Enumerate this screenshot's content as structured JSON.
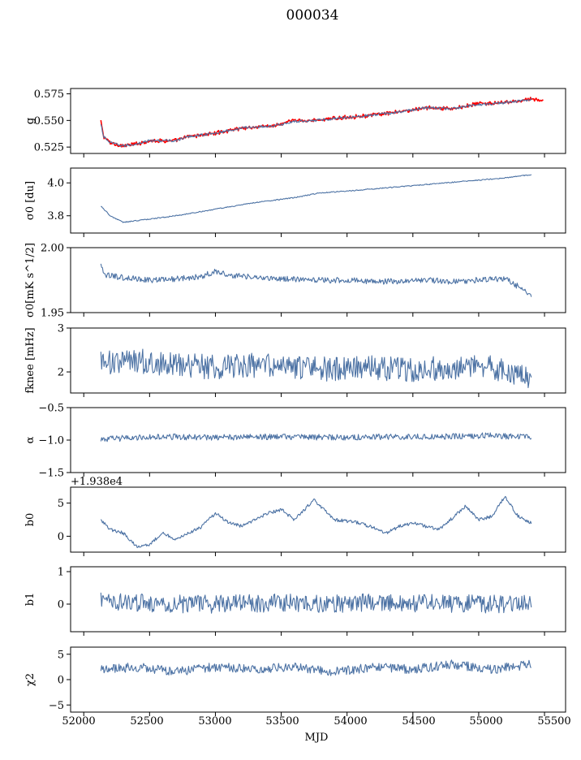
{
  "title": "000034",
  "xlabel": "MJD",
  "x_ticks": [
    "52000",
    "52500",
    "53000",
    "53500",
    "54000",
    "54500",
    "55000",
    "55500"
  ],
  "colors": {
    "line": "#4c72a4",
    "overlay": "#ff0000"
  },
  "chart_data": [
    {
      "type": "line",
      "ylabel": "g",
      "xlim": [
        51900,
        55660
      ],
      "ylim": [
        0.519,
        0.58
      ],
      "y_ticks": [
        "0.525",
        "0.550",
        "0.575"
      ],
      "series": [
        {
          "color": "#ff0000",
          "x": [
            52130,
            52150,
            52200,
            52300,
            52400,
            52500,
            52700,
            52800,
            53000,
            53200,
            53450,
            53600,
            53750,
            54000,
            54200,
            54400,
            54600,
            54800,
            55000,
            55150,
            55300,
            55400,
            55490
          ],
          "y": [
            0.549,
            0.535,
            0.529,
            0.526,
            0.528,
            0.531,
            0.531,
            0.535,
            0.538,
            0.543,
            0.545,
            0.55,
            0.55,
            0.553,
            0.555,
            0.558,
            0.562,
            0.561,
            0.566,
            0.566,
            0.568,
            0.57,
            0.569
          ]
        },
        {
          "color": "#4c72a4",
          "x": [
            52130,
            52150,
            52200,
            52300,
            52400,
            52500,
            52700,
            52800,
            53000,
            53200,
            53450,
            53600,
            53750,
            54000,
            54200,
            54400,
            54600,
            54800,
            55000,
            55150,
            55300,
            55400
          ],
          "y": [
            0.546,
            0.535,
            0.529,
            0.526,
            0.528,
            0.531,
            0.531,
            0.535,
            0.538,
            0.543,
            0.545,
            0.549,
            0.55,
            0.553,
            0.555,
            0.558,
            0.562,
            0.561,
            0.565,
            0.566,
            0.568,
            0.57
          ]
        }
      ]
    },
    {
      "type": "line",
      "ylabel": "σ0 [du]",
      "xlim": [
        51900,
        55660
      ],
      "ylim": [
        3.695,
        4.09
      ],
      "y_ticks": [
        "3.8",
        "4.0"
      ],
      "series": [
        {
          "color": "#4c72a4",
          "x": [
            52130,
            52200,
            52300,
            52400,
            52500,
            52700,
            53000,
            53300,
            53600,
            53800,
            54000,
            54300,
            54600,
            54900,
            55200,
            55400
          ],
          "y": [
            3.86,
            3.8,
            3.76,
            3.77,
            3.78,
            3.8,
            3.84,
            3.88,
            3.91,
            3.94,
            3.95,
            3.97,
            3.99,
            4.01,
            4.03,
            4.05
          ]
        }
      ]
    },
    {
      "type": "line",
      "ylabel": "σ0[mK s^1/2]",
      "xlim": [
        51900,
        55660
      ],
      "ylim": [
        1.95,
        2.0
      ],
      "y_ticks": [
        "1.95",
        "2.00"
      ],
      "series": [
        {
          "color": "#4c72a4",
          "x": [
            52130,
            52150,
            52300,
            52500,
            52700,
            52900,
            53000,
            53100,
            53300,
            53500,
            53800,
            54000,
            54200,
            54400,
            54600,
            54800,
            55000,
            55200,
            55300,
            55400
          ],
          "y": [
            1.988,
            1.979,
            1.977,
            1.975,
            1.976,
            1.978,
            1.982,
            1.979,
            1.977,
            1.976,
            1.975,
            1.975,
            1.974,
            1.974,
            1.975,
            1.974,
            1.975,
            1.976,
            1.97,
            1.962
          ]
        }
      ]
    },
    {
      "type": "line",
      "ylabel": "fknee [mHz]",
      "xlim": [
        51900,
        55660
      ],
      "ylim": [
        1.52,
        3.0
      ],
      "y_ticks": [
        "2",
        "3"
      ],
      "series": [
        {
          "color": "#4c72a4",
          "x": [
            52130,
            52200,
            52400,
            52600,
            52800,
            53000,
            53300,
            53600,
            53900,
            54200,
            54500,
            54800,
            55000,
            55200,
            55400
          ],
          "y": [
            2.3,
            2.2,
            2.25,
            2.2,
            2.15,
            2.1,
            2.15,
            2.1,
            2.05,
            2.1,
            2.05,
            2.1,
            2.15,
            2.05,
            1.9
          ]
        }
      ]
    },
    {
      "type": "line",
      "ylabel": "α",
      "xlim": [
        51900,
        55660
      ],
      "ylim": [
        -1.5,
        -0.5
      ],
      "y_ticks": [
        "−1.5",
        "−1.0",
        "−0.5"
      ],
      "series": [
        {
          "color": "#4c72a4",
          "x": [
            52130,
            52400,
            52700,
            53000,
            53300,
            53600,
            53900,
            54200,
            54500,
            54800,
            55100,
            55400
          ],
          "y": [
            -0.99,
            -0.96,
            -0.95,
            -0.96,
            -0.95,
            -0.95,
            -0.96,
            -0.95,
            -0.95,
            -0.94,
            -0.93,
            -0.96
          ]
        }
      ]
    },
    {
      "type": "line",
      "ylabel": "b0",
      "offset_text": "+1.938e4",
      "xlim": [
        51900,
        55660
      ],
      "ylim": [
        -2.4,
        7.4
      ],
      "y_ticks": [
        "0",
        "5"
      ],
      "series": [
        {
          "color": "#4c72a4",
          "x": [
            52130,
            52200,
            52300,
            52400,
            52500,
            52600,
            52700,
            52800,
            52900,
            53000,
            53100,
            53200,
            53400,
            53500,
            53600,
            53750,
            53900,
            54100,
            54300,
            54400,
            54500,
            54700,
            54900,
            55000,
            55100,
            55200,
            55300,
            55400
          ],
          "y": [
            2.5,
            1.0,
            0.5,
            -1.5,
            -1.2,
            0.5,
            -0.5,
            0.5,
            1.5,
            3.5,
            2.0,
            1.5,
            3.5,
            4.0,
            2.5,
            5.5,
            2.5,
            2.0,
            0.5,
            1.5,
            2.0,
            1.0,
            4.5,
            2.5,
            3.0,
            6.0,
            3.0,
            2.0
          ]
        }
      ]
    },
    {
      "type": "line",
      "ylabel": "b1",
      "xlim": [
        51900,
        55660
      ],
      "ylim": [
        -0.85,
        1.15
      ],
      "y_ticks": [
        "0",
        "1"
      ],
      "series": [
        {
          "color": "#4c72a4",
          "x": [
            52130,
            52400,
            52700,
            53000,
            53300,
            53600,
            53900,
            54200,
            54500,
            54800,
            55100,
            55400
          ],
          "y": [
            0.1,
            0.05,
            0.0,
            0.0,
            0.02,
            0.05,
            0.0,
            0.05,
            0.03,
            0.02,
            0.0,
            0.05
          ]
        }
      ]
    },
    {
      "type": "line",
      "ylabel": "χ2",
      "xlim": [
        51900,
        55660
      ],
      "ylim": [
        -6.4,
        6.4
      ],
      "y_ticks": [
        "−5",
        "0",
        "5"
      ],
      "series": [
        {
          "color": "#4c72a4",
          "x": [
            52130,
            52400,
            52700,
            53000,
            53300,
            53600,
            53900,
            54200,
            54500,
            54800,
            55100,
            55400
          ],
          "y": [
            2.0,
            2.5,
            1.5,
            2.5,
            2.0,
            2.5,
            1.5,
            2.5,
            2.0,
            3.0,
            2.0,
            3.0
          ]
        }
      ]
    }
  ]
}
